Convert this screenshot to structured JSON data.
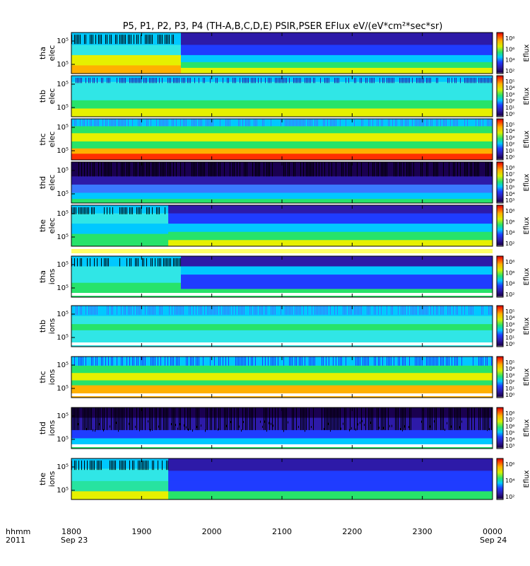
{
  "chart_data": {
    "type": "heatmap",
    "title": "P5, P1, P2, P3, P4 (TH-A,B,C,D,E) PSIR,PSER EFlux eV/(eV*cm²*sec*sr)",
    "x_axis": {
      "tick_labels": [
        "1800",
        "1900",
        "2000",
        "2100",
        "2200",
        "2300",
        "0000"
      ],
      "start_date": "Sep 23",
      "end_date": "Sep 24",
      "label_line1": "hhmm",
      "label_line2": "2011"
    },
    "colorbar_label": "Eflux",
    "panels": [
      {
        "name": "tha elec",
        "label1": "tha",
        "label2": "elec",
        "yticks": [
          "10⁵",
          "10⁵"
        ],
        "cbticks": [
          "10⁸",
          "10⁶",
          "10⁴",
          "10²"
        ]
      },
      {
        "name": "thb elec",
        "label1": "thb",
        "label2": "elec",
        "yticks": [
          "10⁵",
          "10⁵"
        ],
        "cbticks": [
          "10⁵",
          "10⁴",
          "10³",
          "10²",
          "10¹",
          "10⁰"
        ]
      },
      {
        "name": "thc elec",
        "label1": "thc",
        "label2": "elec",
        "yticks": [
          "10⁵",
          "10⁵"
        ],
        "cbticks": [
          "10⁵",
          "10⁴",
          "10³",
          "10²",
          "10¹",
          "10⁰"
        ]
      },
      {
        "name": "thd elec",
        "label1": "thd",
        "label2": "elec",
        "yticks": [
          "10⁵",
          "10⁵"
        ],
        "cbticks": [
          "10⁸",
          "10⁷",
          "10⁶",
          "10⁵",
          "10⁴",
          "10³"
        ]
      },
      {
        "name": "the elec",
        "label1": "the",
        "label2": "elec",
        "yticks": [
          "10⁵",
          "10⁵"
        ],
        "cbticks": [
          "10⁸",
          "10⁶",
          "10⁴",
          "10²"
        ]
      },
      {
        "name": "tha ions",
        "label1": "tha",
        "label2": "ions",
        "yticks": [
          "10⁵",
          "10⁵"
        ],
        "cbticks": [
          "10⁸",
          "10⁶",
          "10⁴",
          "10²"
        ]
      },
      {
        "name": "thb ions",
        "label1": "thb",
        "label2": "ions",
        "yticks": [
          "10⁵",
          "10⁵"
        ],
        "cbticks": [
          "10⁵",
          "10⁴",
          "10³",
          "10²",
          "10¹",
          "10⁰"
        ]
      },
      {
        "name": "thc ions",
        "label1": "thc",
        "label2": "ions",
        "yticks": [
          "10⁵",
          "10⁵"
        ],
        "cbticks": [
          "10⁵",
          "10⁴",
          "10³",
          "10²",
          "10¹",
          "10⁰"
        ]
      },
      {
        "name": "thd ions",
        "label1": "thd",
        "label2": "ions",
        "yticks": [
          "10⁵",
          "10⁵"
        ],
        "cbticks": [
          "10⁸",
          "10⁷",
          "10⁶",
          "10⁵",
          "10⁴",
          "10³"
        ]
      },
      {
        "name": "the ions",
        "label1": "the",
        "label2": "ions",
        "yticks": [
          "10⁵",
          "10⁵"
        ],
        "cbticks": [
          "10⁶",
          "10⁴",
          "10²"
        ]
      }
    ]
  }
}
